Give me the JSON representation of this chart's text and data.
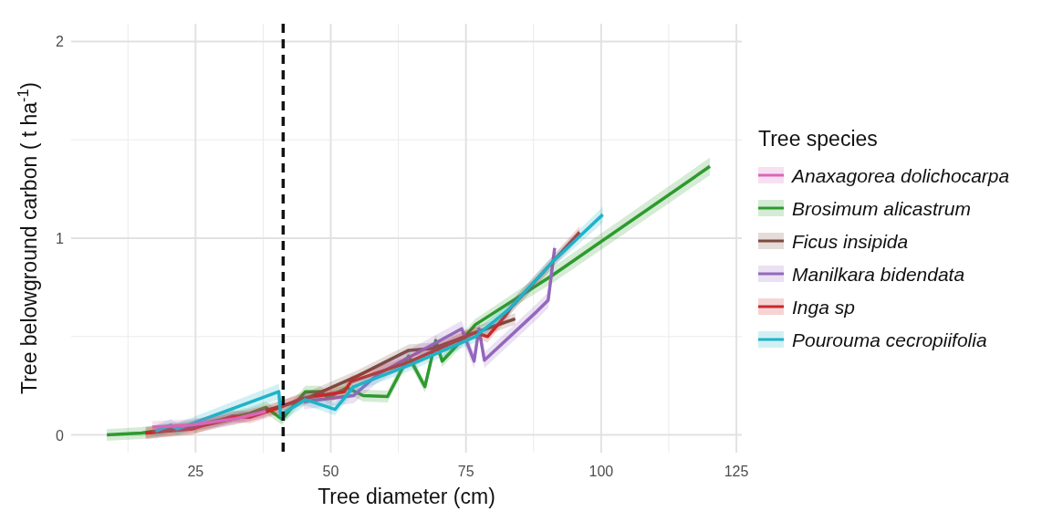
{
  "chart_data": {
    "type": "line",
    "xlabel": "Tree diameter (cm)",
    "ylabel": "Tree belowground carbon ( t ha$^{-1}$)",
    "legend_title": "Tree species",
    "xlim": [
      2,
      126
    ],
    "ylim": [
      -0.09,
      2.09
    ],
    "xticks": [
      25,
      50,
      75,
      100,
      125
    ],
    "yticks": [
      0,
      1,
      2
    ],
    "grid": true,
    "legend": "right",
    "line_style": "solid",
    "ref_lines": [
      {
        "axis": "x",
        "value": 41.2,
        "color": "#111111",
        "line_style": "dashed"
      }
    ],
    "series": [
      {
        "name": "Anaxagorea dolichocarpa",
        "color": "#d966b8",
        "x": [
          17,
          24,
          32,
          38
        ],
        "values": [
          0.04,
          0.05,
          0.08,
          0.12
        ],
        "lower": [
          0.01,
          0.02,
          0.05,
          0.09
        ],
        "upper": [
          0.07,
          0.08,
          0.11,
          0.15
        ]
      },
      {
        "name": "Brosimum alicastrum",
        "color": "#2e9a2e",
        "x": [
          8.6,
          15,
          20,
          25,
          30,
          35,
          38,
          41,
          45.3,
          48,
          49.5,
          53,
          56,
          60.5,
          64.4,
          67.4,
          69.4,
          70.6,
          74.5,
          76.7,
          90.9,
          120.1
        ],
        "values": [
          0,
          0.01,
          0.03,
          0.05,
          0.08,
          0.11,
          0.14,
          0.08,
          0.22,
          0.22,
          0.19,
          0.24,
          0.2,
          0.195,
          0.4,
          0.245,
          0.48,
          0.375,
          0.49,
          0.56,
          0.81,
          1.365
        ],
        "lower": [
          -0.03,
          -0.02,
          0,
          0.02,
          0.05,
          0.08,
          0.11,
          0.05,
          0.19,
          0.19,
          0.16,
          0.21,
          0.17,
          0.165,
          0.37,
          0.215,
          0.45,
          0.345,
          0.46,
          0.53,
          0.77,
          1.32
        ],
        "upper": [
          0.03,
          0.04,
          0.06,
          0.08,
          0.11,
          0.14,
          0.17,
          0.11,
          0.25,
          0.25,
          0.22,
          0.27,
          0.23,
          0.225,
          0.43,
          0.275,
          0.51,
          0.405,
          0.52,
          0.59,
          0.85,
          1.41
        ]
      },
      {
        "name": "Ficus insipida",
        "color": "#7b4a3e",
        "x": [
          15.9,
          25,
          35,
          45,
          55,
          64.4,
          69,
          76.7,
          84.1
        ],
        "values": [
          0.01,
          0.04,
          0.1,
          0.18,
          0.3,
          0.43,
          0.44,
          0.52,
          0.59
        ],
        "lower": [
          -0.02,
          0.01,
          0.07,
          0.15,
          0.27,
          0.4,
          0.41,
          0.49,
          0.56
        ],
        "upper": [
          0.04,
          0.07,
          0.13,
          0.21,
          0.33,
          0.46,
          0.47,
          0.55,
          0.62
        ]
      },
      {
        "name": "Manilkara bidendata",
        "color": "#9467bd",
        "x": [
          45,
          54.2,
          58.8,
          74.2,
          76.5,
          77.4,
          78.4,
          88,
          90.2,
          91.4
        ],
        "values": [
          0.17,
          0.2,
          0.31,
          0.54,
          0.375,
          0.54,
          0.38,
          0.625,
          0.685,
          0.95
        ],
        "lower": [
          0.13,
          0.16,
          0.27,
          0.5,
          0.335,
          0.5,
          0.34,
          0.585,
          0.645,
          0.91
        ],
        "upper": [
          0.21,
          0.24,
          0.35,
          0.58,
          0.415,
          0.58,
          0.42,
          0.665,
          0.725,
          0.99
        ]
      },
      {
        "name": "Inga sp",
        "color": "#c8282a",
        "x": [
          15.7,
          24.3,
          31.8,
          35.1,
          40.7,
          44.6,
          52.5,
          53.7,
          64.4,
          76.7,
          79,
          82.4,
          83.4,
          96
        ],
        "values": [
          0.01,
          0.03,
          0.095,
          0.09,
          0.14,
          0.185,
          0.22,
          0.27,
          0.37,
          0.52,
          0.5,
          0.61,
          0.65,
          1.03
        ],
        "lower": [
          -0.02,
          0,
          0.065,
          0.06,
          0.11,
          0.155,
          0.19,
          0.24,
          0.34,
          0.49,
          0.47,
          0.58,
          0.62,
          1
        ],
        "upper": [
          0.04,
          0.06,
          0.125,
          0.12,
          0.17,
          0.215,
          0.25,
          0.3,
          0.4,
          0.55,
          0.53,
          0.64,
          0.68,
          1.06
        ]
      },
      {
        "name": "Pourouma cecropiifolia",
        "color": "#1fb3c8",
        "x": [
          17.6,
          20.4,
          21.6,
          40.4,
          40.7,
          45.3,
          50.8,
          54.2,
          65,
          76.7,
          83,
          91,
          100.3
        ],
        "values": [
          0.02,
          0.05,
          0.03,
          0.22,
          0.1,
          0.18,
          0.13,
          0.245,
          0.36,
          0.5,
          0.64,
          0.88,
          1.12
        ],
        "lower": [
          -0.01,
          0.02,
          0,
          0.18,
          0.06,
          0.15,
          0.1,
          0.215,
          0.33,
          0.47,
          0.61,
          0.85,
          1.08
        ],
        "upper": [
          0.05,
          0.08,
          0.06,
          0.26,
          0.14,
          0.21,
          0.16,
          0.275,
          0.39,
          0.53,
          0.67,
          0.91,
          1.16
        ]
      }
    ]
  }
}
